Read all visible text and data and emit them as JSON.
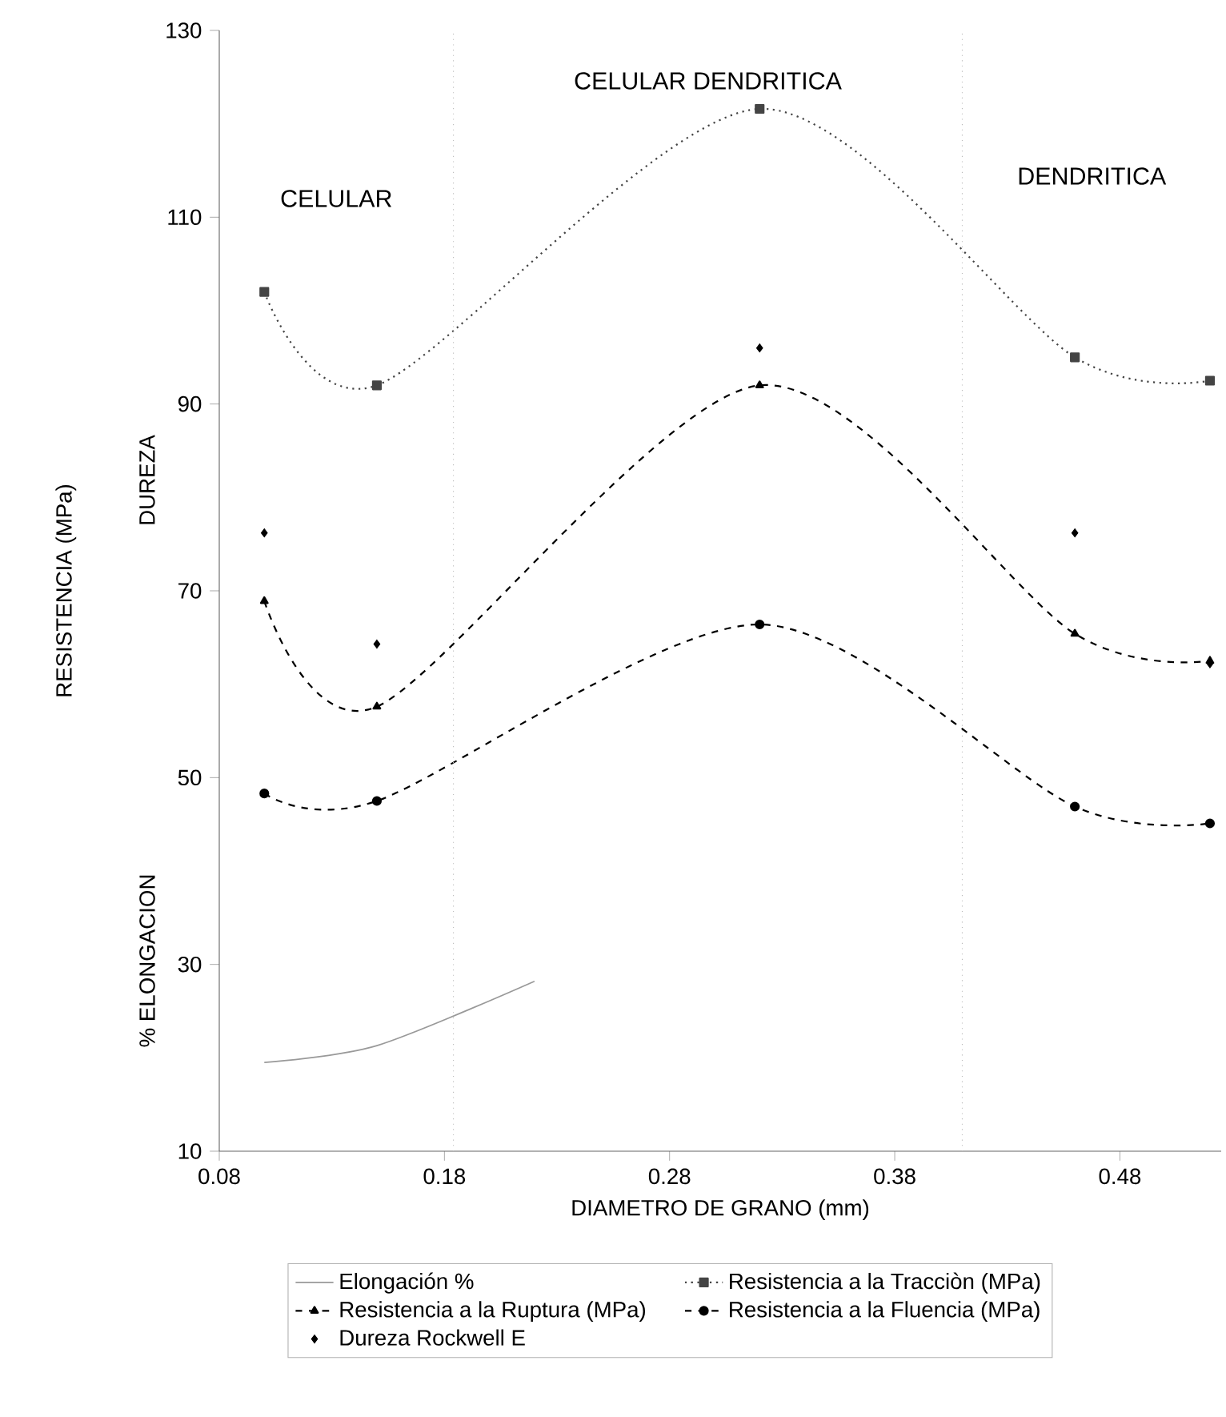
{
  "chart_data": {
    "type": "line",
    "xlabel": "DIAMETRO DE GRANO (mm)",
    "ylabel": "RESISTENCIA (MPa)",
    "annotations": [
      "CELULAR",
      "CELULAR DENDRITICA",
      "DENDRITICA",
      "DUREZA",
      "% ELONGACION"
    ],
    "x": [
      0.1,
      0.15,
      0.32,
      0.46,
      0.52
    ],
    "series": [
      {
        "name": "Elongación %",
        "color": "#999999",
        "x": [
          0.1,
          0.15,
          0.22
        ],
        "values": [
          19.5,
          21.3,
          28.2
        ],
        "marker": "none",
        "line_style": "solid"
      },
      {
        "name": "Resistencia a la Tracciòn (MPa)",
        "color": "#444444",
        "values": [
          102,
          92,
          121.6,
          95,
          92.5
        ],
        "marker": "square",
        "line_style": "dotted"
      },
      {
        "name": "Resistencia a la Ruptura (MPa)",
        "color": "#000000",
        "values": [
          68.9,
          57.6,
          92,
          65.4,
          62.5
        ],
        "marker": "triangle",
        "line_style": "dashed"
      },
      {
        "name": "Resistencia a la Fluencia (MPa)",
        "color": "#000000",
        "values": [
          48.3,
          47.5,
          66.4,
          46.9,
          45.1
        ],
        "marker": "circle",
        "line_style": "dashed"
      },
      {
        "name": "Dureza Rockwell E",
        "type": "scatter",
        "color": "#000000",
        "values": [
          76.2,
          64.3,
          96,
          76.2,
          62.2
        ],
        "marker": "diamond"
      }
    ],
    "xlim": [
      0.08,
      0.525
    ],
    "ylim": [
      10,
      130
    ],
    "xticks": [
      0.08,
      0.18,
      0.28,
      0.38,
      0.48
    ],
    "yticks": [
      10,
      30,
      50,
      70,
      90,
      110,
      130
    ],
    "ref_lines": [
      {
        "axis": "x",
        "value": 0.184,
        "color": "#bbbbbb",
        "line_style": "dotted"
      },
      {
        "axis": "x",
        "value": 0.41,
        "color": "#bbbbbb",
        "line_style": "dotted"
      }
    ],
    "legend": "bottom",
    "grid": false
  }
}
